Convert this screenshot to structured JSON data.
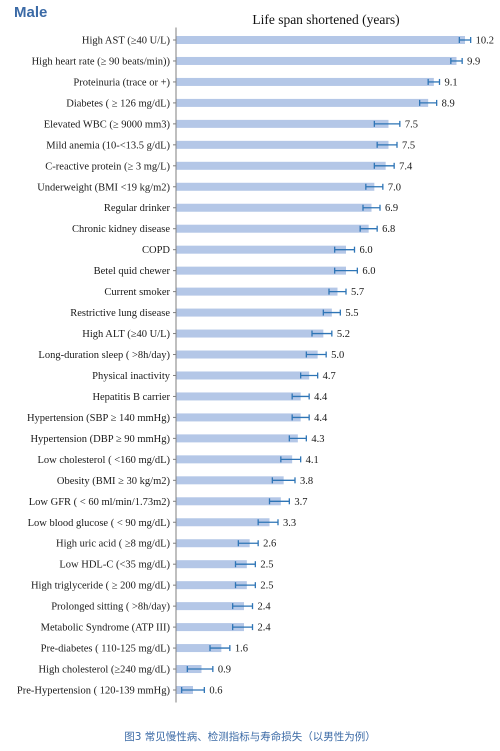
{
  "panel_label": "Male",
  "caption": "图3  常见慢性病、检测指标与寿命损失（以男性为例）",
  "colors": {
    "bar": "#b4c7e7",
    "error_bar": "#2e75b6",
    "axis": "#7f7f7f",
    "panel_label": "#3b6aa6"
  },
  "chart_data": {
    "type": "bar",
    "orientation": "horizontal",
    "title": "Life span shortened (years)",
    "xlim": [
      0,
      10.8
    ],
    "grid": false,
    "categories": [
      "High AST (≥40 U/L)",
      "High heart rate (≥ 90 beats/min))",
      "Proteinuria (trace or +)",
      "Diabetes ( ≥ 126 mg/dL)",
      "Elevated WBC (≥ 9000 mm3)",
      "Mild anemia (10-<13.5 g/dL)",
      "C-reactive protein (≥ 3 mg/L)",
      "Underweight  (BMI <19 kg/m2)",
      "Regular drinker",
      "Chronic kidney disease",
      "COPD",
      "Betel quid chewer",
      "Current smoker",
      "Restrictive lung disease",
      "High ALT (≥40 U/L)",
      "Long-duration sleep ( >8h/day)",
      "Physical inactivity",
      "Hepatitis B carrier",
      "Hypertension (SBP ≥ 140 mmHg)",
      "Hypertension (DBP ≥ 90 mmHg)",
      "Low cholesterol ( <160 mg/dL)",
      "Obesity (BMI ≥ 30 kg/m2)",
      "Low GFR  ( < 60 ml/min/1.73m2)",
      "Low blood glucose ( < 90 mg/dL)",
      "High uric acid ( ≥8 mg/dL)",
      "Low HDL-C (<35 mg/dL)",
      "High triglyceride ( ≥ 200 mg/dL)",
      "Prolonged sitting ( >8h/day)",
      "Metabolic Syndrome (ATP III)",
      "Pre-diabetes ( 110-125 mg/dL)",
      "High cholesterol (≥240 mg/dL)",
      "Pre-Hypertension ( 120-139 mmHg)"
    ],
    "values": [
      10.2,
      9.9,
      9.1,
      8.9,
      7.5,
      7.5,
      7.4,
      7.0,
      6.9,
      6.8,
      6.0,
      6.0,
      5.7,
      5.5,
      5.2,
      5.0,
      4.7,
      4.4,
      4.4,
      4.3,
      4.1,
      3.8,
      3.7,
      3.3,
      2.6,
      2.5,
      2.5,
      2.4,
      2.4,
      1.6,
      0.9,
      0.6
    ],
    "value_labels": [
      "10.2",
      "9.9",
      "9.1",
      "8.9",
      "7.5",
      "7.5",
      "7.4",
      "7.0",
      "6.9",
      "6.8",
      "6.0",
      "6.0",
      "5.7",
      "5.5",
      "5.2",
      "5.0",
      "4.7",
      "4.4",
      "4.4",
      "4.3",
      "4.1",
      "3.8",
      "3.7",
      "3.3",
      "2.6",
      "2.5",
      "2.5",
      "2.4",
      "2.4",
      "1.6",
      "0.9",
      "0.6"
    ],
    "error_low": [
      10.0,
      9.7,
      8.9,
      8.6,
      7.0,
      7.1,
      7.0,
      6.7,
      6.6,
      6.5,
      5.6,
      5.6,
      5.4,
      5.2,
      4.8,
      4.6,
      4.4,
      4.1,
      4.1,
      4.0,
      3.7,
      3.4,
      3.3,
      2.9,
      2.2,
      2.1,
      2.1,
      2.0,
      2.0,
      1.2,
      0.4,
      0.2
    ],
    "error_high": [
      10.4,
      10.1,
      9.3,
      9.2,
      7.9,
      7.8,
      7.7,
      7.3,
      7.2,
      7.1,
      6.3,
      6.4,
      6.0,
      5.8,
      5.5,
      5.3,
      5.0,
      4.7,
      4.7,
      4.6,
      4.4,
      4.2,
      4.0,
      3.6,
      2.9,
      2.8,
      2.8,
      2.7,
      2.7,
      1.9,
      1.3,
      1.0
    ]
  }
}
